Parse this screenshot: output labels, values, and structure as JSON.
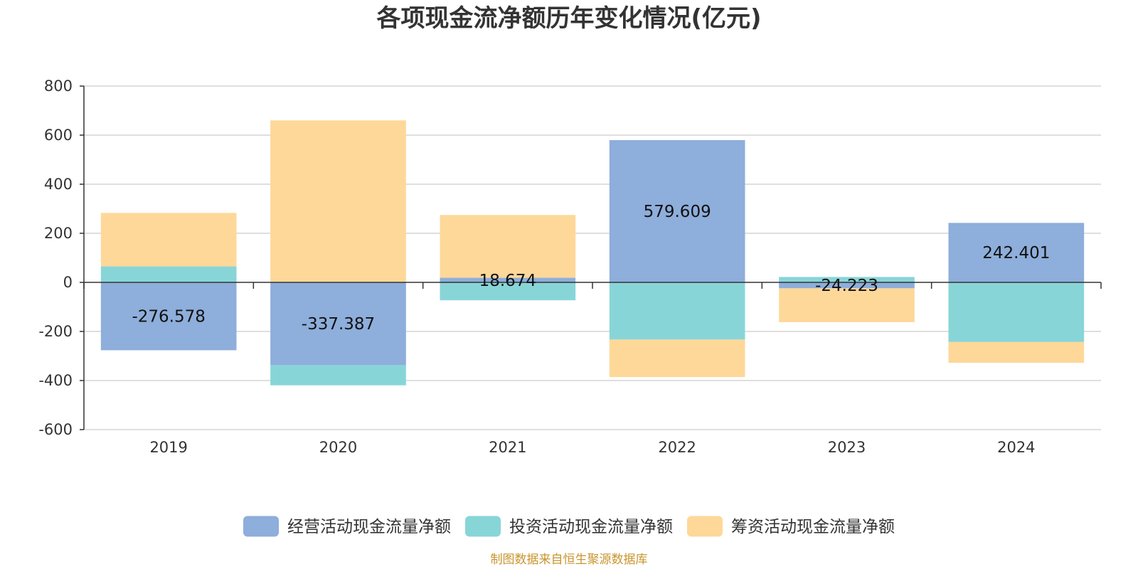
{
  "chart_data": {
    "type": "bar",
    "stacked": true,
    "title": "各项现金流净额历年变化情况(亿元)",
    "categories": [
      "2019",
      "2020",
      "2021",
      "2022",
      "2023",
      "2024"
    ],
    "series": [
      {
        "name": "经营活动现金流量净额",
        "color": "#8eaedb",
        "values": [
          -276.578,
          -337.387,
          18.674,
          579.609,
          -24.223,
          242.401
        ]
      },
      {
        "name": "投资活动现金流量净额",
        "color": "#88d5d8",
        "values": [
          65,
          -82,
          -73,
          -233,
          22,
          -243
        ]
      },
      {
        "name": "筹资活动现金流量净额",
        "color": "#fed899",
        "values": [
          218,
          660,
          256,
          -153,
          -138,
          -85
        ]
      }
    ],
    "data_labels": [
      {
        "category": "2019",
        "text": "-276.578"
      },
      {
        "category": "2020",
        "text": "-337.387"
      },
      {
        "category": "2021",
        "text": "18.674"
      },
      {
        "category": "2022",
        "text": "579.609"
      },
      {
        "category": "2023",
        "text": "-24.223"
      },
      {
        "category": "2024",
        "text": "242.401"
      }
    ],
    "yticks": [
      800,
      600,
      400,
      200,
      0,
      -200,
      -400,
      -600
    ],
    "ylim": [
      -600,
      800
    ],
    "grid": true,
    "legend_position": "bottom-center"
  },
  "source": "制图数据来自恒生聚源数据库"
}
